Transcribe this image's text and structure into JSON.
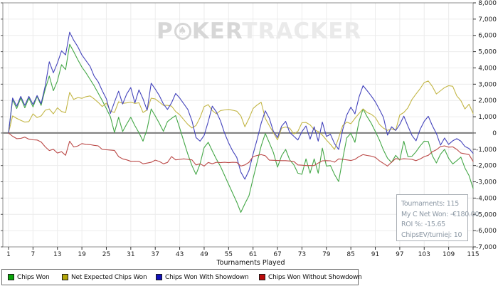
{
  "watermark": {
    "part1": "P",
    "chip_icon": "poker-chip-icon",
    "part2": "KER",
    "part3": "TRACKER"
  },
  "stats_box": {
    "line1": "Tournaments: 115",
    "line2": "My C Net Won: -€180.00",
    "line3": "ROI %: -15.65",
    "line4": "ChipsEV/turniej: 10"
  },
  "chart_data": {
    "type": "line",
    "title": "",
    "xlabel": "Tournaments Played",
    "ylabel": "",
    "ylim": [
      -7000,
      8000
    ],
    "y_tick_step": 1000,
    "grid": true,
    "legend_position": "bottom",
    "x_ticks": [
      1,
      7,
      13,
      19,
      25,
      31,
      37,
      43,
      49,
      55,
      61,
      67,
      73,
      79,
      85,
      91,
      97,
      103,
      109,
      115
    ],
    "x_range": [
      1,
      115
    ],
    "colors": {
      "grid": "#ececec",
      "zero_line": "#7a7a7a",
      "plot_border": "#8c8c8c",
      "tick_text": "#1c1c1c",
      "background": "#ffffff"
    },
    "series": [
      {
        "name": "Chips Won",
        "color": "#44a747",
        "legend_color": "#0aa50a",
        "values": [
          0,
          2050,
          1500,
          2150,
          1550,
          2150,
          1600,
          2250,
          1700,
          2700,
          3500,
          2600,
          3200,
          4200,
          3900,
          5450,
          5000,
          4500,
          4050,
          3700,
          3300,
          2900,
          2450,
          2000,
          1500,
          1000,
          30,
          970,
          90,
          550,
          970,
          450,
          20,
          -500,
          250,
          1480,
          1050,
          600,
          100,
          700,
          900,
          1070,
          300,
          -500,
          -1300,
          -2000,
          -2550,
          -1900,
          -900,
          -570,
          -1100,
          -1600,
          -2050,
          -2600,
          -3150,
          -3700,
          -4250,
          -4880,
          -4350,
          -3850,
          -2800,
          -1800,
          -800,
          -30,
          -600,
          -1200,
          -2100,
          -1400,
          -1010,
          -1650,
          -1950,
          -2470,
          -2540,
          -1590,
          -2470,
          -1590,
          -2470,
          -930,
          -2030,
          -2000,
          -2550,
          -2980,
          -1600,
          -300,
          -20,
          -570,
          700,
          1480,
          1000,
          600,
          100,
          -430,
          -1050,
          -1550,
          -1810,
          -1370,
          -1670,
          -500,
          -1450,
          -1430,
          -1150,
          -800,
          -500,
          -520,
          -1400,
          -1840,
          -1300,
          -1010,
          -1550,
          -1900,
          -1700,
          -1480,
          -2150,
          -2620,
          -3400
        ]
      },
      {
        "name": "Net Expected Chips Won",
        "color": "#c3b646",
        "legend_color": "#b3a70b",
        "values": [
          0,
          1050,
          900,
          780,
          670,
          700,
          1180,
          950,
          1050,
          1400,
          1480,
          1180,
          1550,
          1320,
          1250,
          2500,
          2060,
          2180,
          2130,
          2230,
          2280,
          2100,
          1880,
          1630,
          1840,
          1350,
          1260,
          1920,
          1820,
          1850,
          1900,
          1820,
          1860,
          1260,
          1420,
          2140,
          2090,
          1900,
          1700,
          1700,
          1650,
          1320,
          1120,
          820,
          530,
          310,
          460,
          950,
          1620,
          1740,
          1380,
          1180,
          1380,
          1420,
          1450,
          1400,
          1340,
          1060,
          380,
          900,
          1500,
          1720,
          1890,
          900,
          450,
          20,
          -425,
          300,
          370,
          300,
          -60,
          100,
          630,
          650,
          500,
          200,
          90,
          -130,
          -425,
          -700,
          -1010,
          -300,
          450,
          670,
          570,
          900,
          1200,
          1480,
          1260,
          1150,
          960,
          530,
          300,
          160,
          260,
          160,
          1110,
          1260,
          1550,
          2060,
          2400,
          2720,
          3100,
          3200,
          2860,
          2400,
          2600,
          2790,
          2910,
          2870,
          2280,
          1990,
          1480,
          1770,
          1200
        ]
      },
      {
        "name": "Chips Won With Showdown",
        "color": "#4444bc",
        "legend_color": "#1111bb",
        "values": [
          0,
          2150,
          1650,
          2250,
          1700,
          2250,
          1750,
          2300,
          1800,
          2900,
          4380,
          3700,
          4300,
          5050,
          4800,
          6200,
          5700,
          5300,
          4800,
          4450,
          4100,
          3500,
          3150,
          2600,
          2100,
          1200,
          1900,
          2570,
          1780,
          2400,
          2790,
          1850,
          2650,
          2100,
          1400,
          3060,
          2700,
          2300,
          1780,
          1450,
          1850,
          2430,
          2150,
          1800,
          1450,
          750,
          -280,
          -500,
          -150,
          700,
          1650,
          1300,
          750,
          0,
          -600,
          -1100,
          -1500,
          -2400,
          -2840,
          -2300,
          -1300,
          -400,
          600,
          1360,
          900,
          100,
          -280,
          420,
          715,
          30,
          -200,
          -430,
          80,
          430,
          -380,
          380,
          -500,
          670,
          -210,
          -80,
          -650,
          -1010,
          200,
          1100,
          1590,
          1180,
          2200,
          2910,
          2600,
          2280,
          1920,
          1450,
          960,
          -130,
          380,
          160,
          520,
          1040,
          420,
          -150,
          -480,
          220,
          720,
          1030,
          450,
          -30,
          -745,
          -310,
          -700,
          -480,
          -350,
          -500,
          -830,
          -950,
          -1250
        ]
      },
      {
        "name": "Chips Won Without Showdown",
        "color": "#bb4a48",
        "legend_color": "#bb0a0a",
        "values": [
          0,
          -200,
          -350,
          -330,
          -250,
          -380,
          -420,
          -430,
          -550,
          -850,
          -1080,
          -1000,
          -1230,
          -1150,
          -1370,
          -500,
          -860,
          -800,
          -650,
          -700,
          -715,
          -760,
          -790,
          -1010,
          -1030,
          -1050,
          -1070,
          -1450,
          -1590,
          -1650,
          -1740,
          -1730,
          -1740,
          -1890,
          -1850,
          -1800,
          -1670,
          -1750,
          -1890,
          -1810,
          -1450,
          -1650,
          -1620,
          -1590,
          -1620,
          -1650,
          -1960,
          -1890,
          -2030,
          -1810,
          -1890,
          -1800,
          -1820,
          -1800,
          -1820,
          -1800,
          -1810,
          -2030,
          -1960,
          -1800,
          -1450,
          -1380,
          -1330,
          -1400,
          -1670,
          -1680,
          -1690,
          -1700,
          -1700,
          -1720,
          -1750,
          -1960,
          -1980,
          -2000,
          -2000,
          -2000,
          -1850,
          -1710,
          -1700,
          -1710,
          -1790,
          -1590,
          -1620,
          -1650,
          -1690,
          -1620,
          -1450,
          -1330,
          -1380,
          -1420,
          -1500,
          -1710,
          -1870,
          -2030,
          -1790,
          -1570,
          -1620,
          -1580,
          -1600,
          -1620,
          -1700,
          -1600,
          -1450,
          -1370,
          -1150,
          -1030,
          -830,
          -790,
          -870,
          -850,
          -1010,
          -1230,
          -1280,
          -1330,
          -1750
        ]
      }
    ]
  }
}
